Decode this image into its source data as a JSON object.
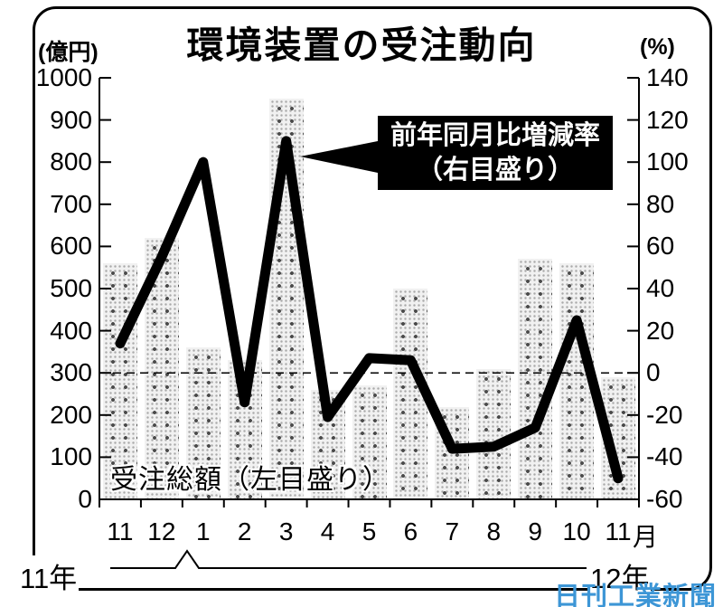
{
  "figure": {
    "title": "環境装置の受注動向",
    "left_axis_unit": "(億円)",
    "right_axis_unit": "(%)",
    "month_unit": "月",
    "year_left": "11年",
    "year_right": "12年",
    "bar_label": "受注総額（左目盛り）",
    "line_label_line1": "前年同月比増減率",
    "line_label_line2": "（右目盛り）",
    "source": "日刊工業新聞"
  },
  "chart_data": {
    "type": "bar",
    "subtype": "bar-line-combo",
    "categories": [
      "11",
      "12",
      "1",
      "2",
      "3",
      "4",
      "5",
      "6",
      "7",
      "8",
      "9",
      "10",
      "11"
    ],
    "series": [
      {
        "name": "受注総額（左目盛り）",
        "type": "bar",
        "axis": "left",
        "unit": "億円",
        "values": [
          560,
          620,
          360,
          330,
          950,
          260,
          270,
          500,
          220,
          310,
          570,
          560,
          290
        ]
      },
      {
        "name": "前年同月比増減率（右目盛り）",
        "type": "line",
        "axis": "right",
        "unit": "%",
        "values": [
          14,
          55,
          100,
          -14,
          110,
          -21,
          7,
          6,
          -36,
          -35,
          -26,
          25,
          -50
        ]
      }
    ],
    "left_axis": {
      "label": "(億円)",
      "min": 0,
      "max": 1000,
      "step": 100,
      "tick_labels": [
        "1000",
        "900",
        "800",
        "700",
        "600",
        "500",
        "400",
        "300",
        "200",
        "100",
        "0"
      ]
    },
    "right_axis": {
      "label": "(%)",
      "min": -60,
      "max": 140,
      "step": 20,
      "tick_labels": [
        "140",
        "120",
        "100",
        "80",
        "60",
        "40",
        "20",
        "0",
        "-20",
        "-40",
        "-60"
      ]
    },
    "x_axis": {
      "unit_suffix": "月",
      "year_left": "11年",
      "year_right": "12年",
      "year_break_between": [
        "12",
        "1"
      ]
    },
    "zero_reference_line": {
      "axis": "right",
      "value": 0,
      "style": "dashed"
    },
    "grid": "off",
    "legend_position": "on-plot-annotations"
  },
  "colors": {
    "ink": "#000000",
    "background": "#ffffff",
    "bar_fill_base": "#f1f1f1",
    "source_blue": "#3d96d6"
  }
}
